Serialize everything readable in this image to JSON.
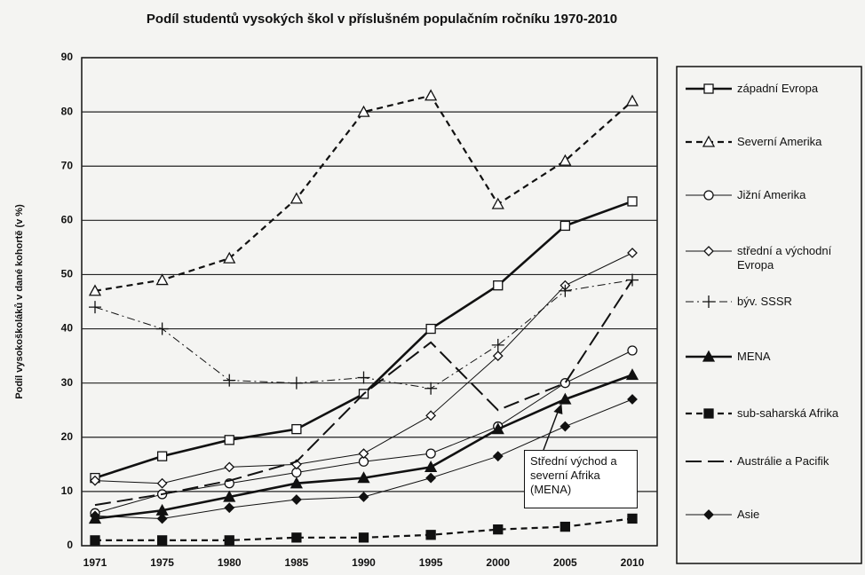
{
  "chart_data": {
    "type": "line",
    "title": "Podíl studentů vysokých škol v příslušném populačním ročníku 1970-2010",
    "y_label": "Podíl vysokoškoláků v dané kohortě (v %)",
    "categories": [
      "1971",
      "1975",
      "1980",
      "1985",
      "1990",
      "1995",
      "2000",
      "2005",
      "2010"
    ],
    "ylim": [
      0,
      90
    ],
    "yticks": [
      0,
      10,
      20,
      30,
      40,
      50,
      60,
      70,
      80,
      90
    ],
    "grid": true,
    "legend": "right",
    "series": [
      {
        "name": "západní Evropa",
        "color": "#111111",
        "dash": "solid",
        "linewidth": 2.6,
        "marker": "square-open",
        "values": [
          12.5,
          16.5,
          19.5,
          21.5,
          28,
          40,
          48,
          59,
          63.5
        ]
      },
      {
        "name": "Severní Amerika",
        "color": "#111111",
        "dash": "dashed",
        "linewidth": 2.2,
        "marker": "triangle-open",
        "values": [
          47,
          49,
          53,
          64,
          80,
          83,
          63,
          71,
          82
        ]
      },
      {
        "name": "Jižní Amerika",
        "color": "#111111",
        "dash": "solid",
        "linewidth": 1,
        "marker": "circle-open",
        "values": [
          6,
          9.5,
          11.5,
          13.5,
          15.5,
          17,
          22,
          30,
          36
        ]
      },
      {
        "name": "střední a východní Evropa",
        "color": "#111111",
        "dash": "solid",
        "linewidth": 1,
        "marker": "diamond-open",
        "values": [
          12,
          11.5,
          14.5,
          15,
          17,
          24,
          35,
          48,
          54
        ]
      },
      {
        "name": "býv. SSSR",
        "color": "#111111",
        "dash": "dashdot",
        "linewidth": 1,
        "marker": "plus",
        "values": [
          44,
          40,
          30.5,
          30,
          31,
          29,
          37,
          47,
          49
        ]
      },
      {
        "name": "MENA",
        "color": "#111111",
        "dash": "solid",
        "linewidth": 2.6,
        "marker": "triangle",
        "values": [
          5,
          6.5,
          9,
          11.5,
          12.5,
          14.5,
          21.5,
          27,
          31.5
        ]
      },
      {
        "name": "sub-saharská Afrika",
        "color": "#111111",
        "dash": "dashed",
        "linewidth": 2.2,
        "marker": "square",
        "values": [
          1,
          1,
          1,
          1.5,
          1.5,
          2,
          3,
          3.5,
          5
        ]
      },
      {
        "name": "Austrálie a Pacifik",
        "color": "#111111",
        "dash": "longdash",
        "linewidth": 2,
        "marker": "none",
        "values": [
          7.5,
          9.5,
          12,
          15.5,
          28,
          37.5,
          25,
          30,
          49
        ]
      },
      {
        "name": "Asie",
        "color": "#111111",
        "dash": "solid",
        "linewidth": 1,
        "marker": "diamond",
        "values": [
          5.5,
          5,
          7,
          8.5,
          9,
          12.5,
          16.5,
          22,
          27
        ]
      }
    ],
    "annotation": {
      "text": "Střední východ a severní Afrika (MENA)",
      "series": 5,
      "point": 7
    }
  }
}
